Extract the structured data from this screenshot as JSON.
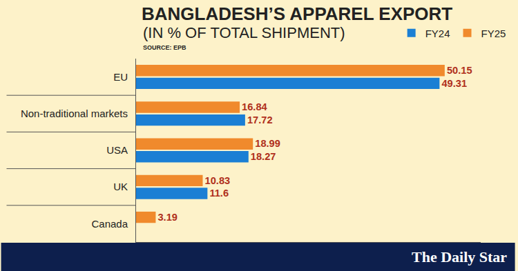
{
  "chart_data": {
    "type": "bar",
    "title": "BANGLADESH’S APPAREL EXPORT",
    "subtitle": "(IN % OF TOTAL SHIPMENT)",
    "source": "SOURCE: EPB",
    "footer": "The Daily Star",
    "orientation": "horizontal",
    "categories": [
      "EU",
      "Non-traditional markets",
      "USA",
      "UK",
      "Canada"
    ],
    "series": [
      {
        "name": "FY24",
        "color": "#1b7fd4",
        "values": [
          49.31,
          17.72,
          18.27,
          11.6,
          null
        ]
      },
      {
        "name": "FY25",
        "color": "#f08a2c",
        "values": [
          50.15,
          16.84,
          18.99,
          10.83,
          3.19
        ]
      }
    ],
    "xlim": [
      0,
      56
    ],
    "xticks": [],
    "tick_labels": "y",
    "grid": false,
    "legend": "top right",
    "data_labels": true
  }
}
